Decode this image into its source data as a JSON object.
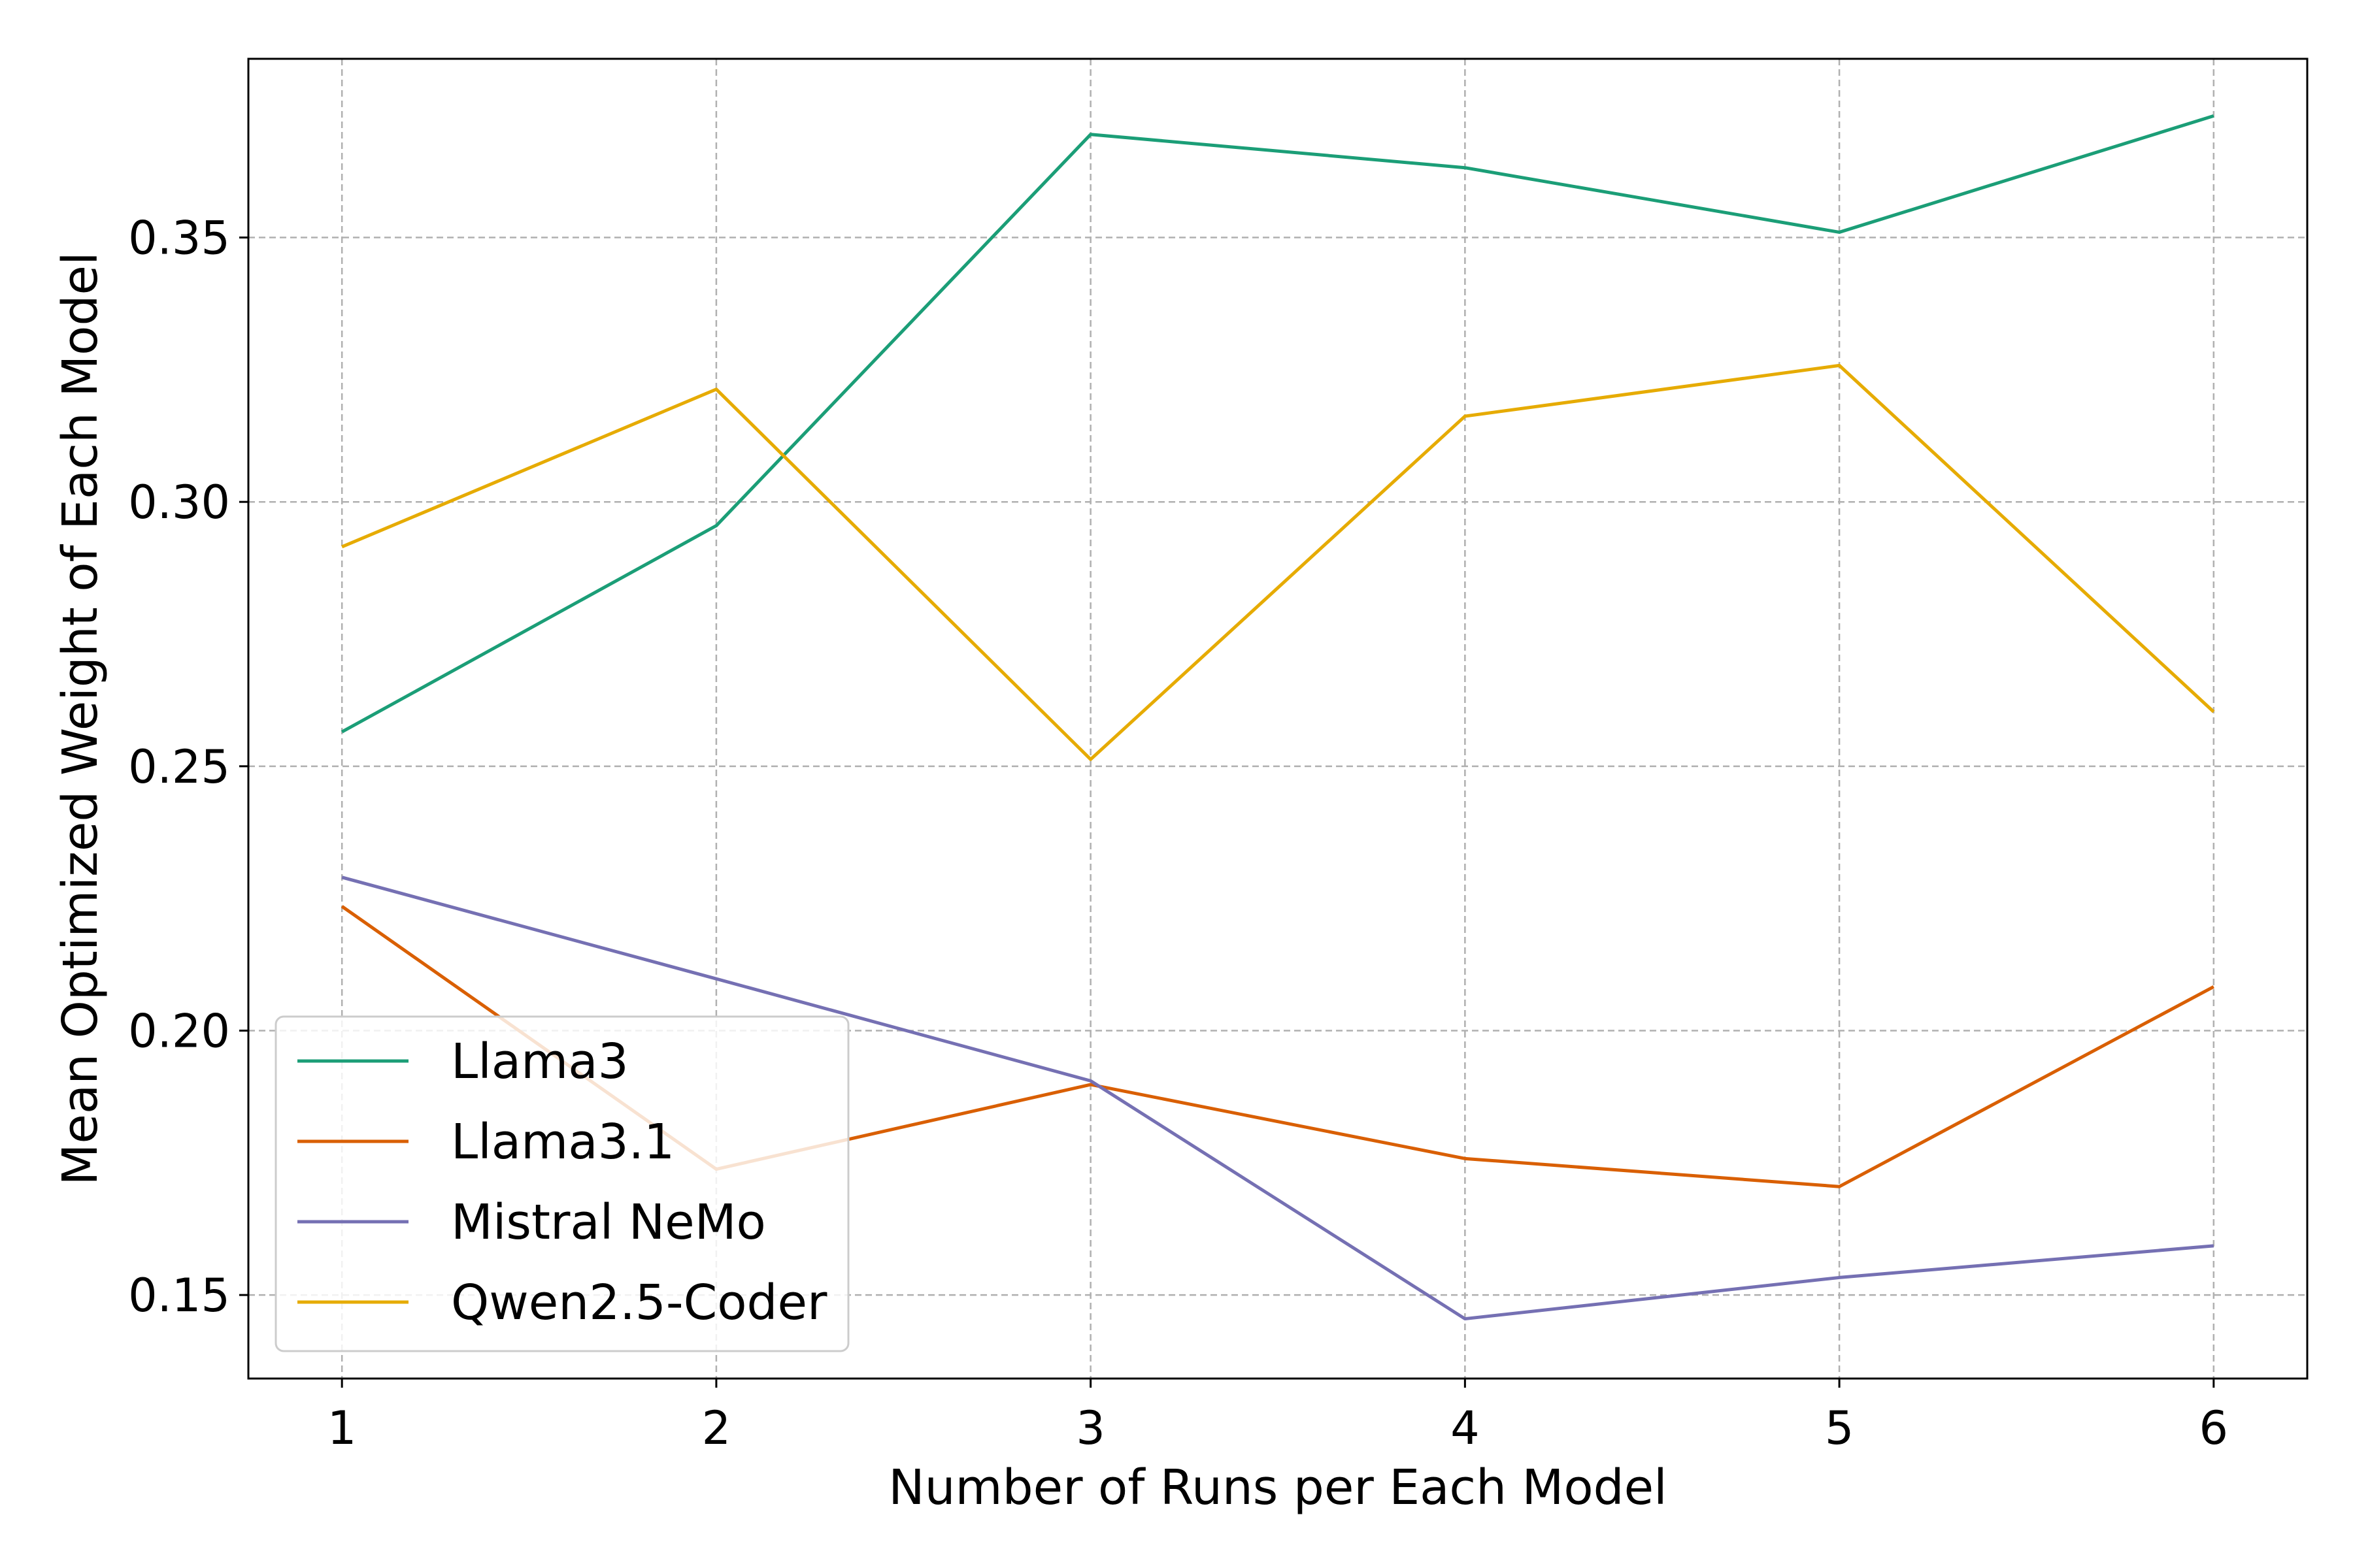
{
  "chart_data": {
    "type": "line",
    "title": "",
    "xlabel": "Number of Runs per Each Model",
    "ylabel": "Mean Optimized Weight of Each Model",
    "x": [
      1,
      2,
      3,
      4,
      5,
      6
    ],
    "xlim": [
      0.75,
      6.25
    ],
    "ylim": [
      0.1342,
      0.3838
    ],
    "xticks": [
      "1",
      "2",
      "3",
      "4",
      "5",
      "6"
    ],
    "yticks": [
      "0.15",
      "0.20",
      "0.25",
      "0.30",
      "0.35"
    ],
    "grid": true,
    "legend_position": "lower-left",
    "series": [
      {
        "name": "Llama3",
        "color": "#1b9e77",
        "values": [
          0.2565,
          0.2955,
          0.3695,
          0.3632,
          0.351,
          0.373
        ]
      },
      {
        "name": "Llama3.1",
        "color": "#d95f02",
        "values": [
          0.2235,
          0.1738,
          0.1898,
          0.1758,
          0.1705,
          0.2083
        ]
      },
      {
        "name": "Mistral NeMo",
        "color": "#7570b3",
        "values": [
          0.229,
          0.2098,
          0.1905,
          0.1455,
          0.1533,
          0.1593
        ]
      },
      {
        "name": "Qwen2.5-Coder",
        "color": "#e6ab02",
        "values": [
          0.2915,
          0.3213,
          0.2513,
          0.3162,
          0.3258,
          0.2603
        ]
      }
    ]
  }
}
